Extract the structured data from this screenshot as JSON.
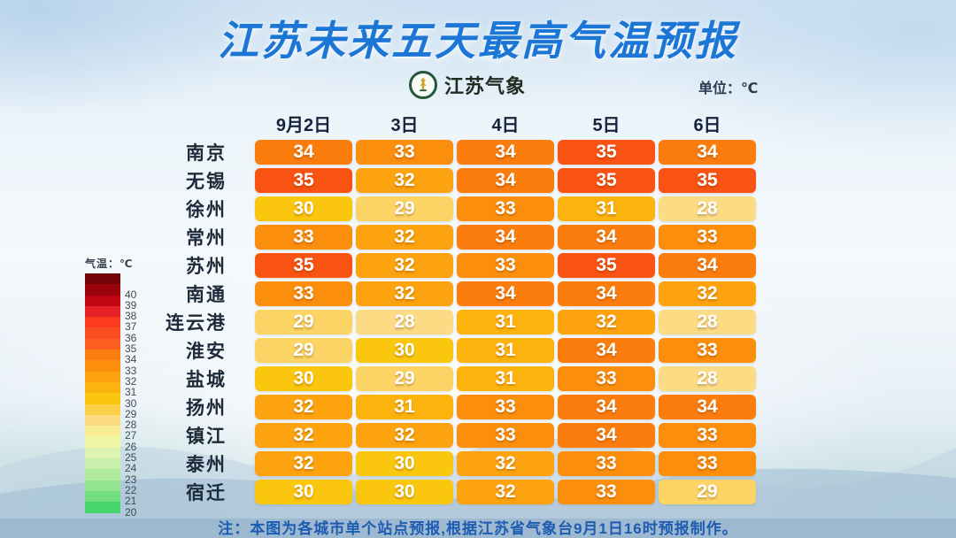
{
  "header": {
    "title": "江苏未来五天最高气温预报",
    "logo_text": "江苏气象",
    "unit_label": "单位：℃"
  },
  "legend": {
    "title": "气温：℃",
    "stops": [
      {
        "label": "",
        "color": "#73040a"
      },
      {
        "label": "40",
        "color": "#9b040c"
      },
      {
        "label": "39",
        "color": "#c00613"
      },
      {
        "label": "38",
        "color": "#e62226"
      },
      {
        "label": "37",
        "color": "#fb3a20"
      },
      {
        "label": "36",
        "color": "#fc4d22"
      },
      {
        "label": "35",
        "color": "#fb5e1f"
      },
      {
        "label": "34",
        "color": "#fb7d0f"
      },
      {
        "label": "33",
        "color": "#fb8e0c"
      },
      {
        "label": "32",
        "color": "#fca30f"
      },
      {
        "label": "31",
        "color": "#fcb30d"
      },
      {
        "label": "30",
        "color": "#fbc70e"
      },
      {
        "label": "29",
        "color": "#fbd14a"
      },
      {
        "label": "28",
        "color": "#fbdc82"
      },
      {
        "label": "27",
        "color": "#f8ec95"
      },
      {
        "label": "26",
        "color": "#eef6a3"
      },
      {
        "label": "25",
        "color": "#dcf3b2"
      },
      {
        "label": "24",
        "color": "#c8efac"
      },
      {
        "label": "23",
        "color": "#afea9e"
      },
      {
        "label": "22",
        "color": "#93e490"
      },
      {
        "label": "21",
        "color": "#74dd80"
      },
      {
        "label": "20",
        "color": "#45d66c"
      }
    ]
  },
  "table": {
    "columns": [
      "9月2日",
      "3日",
      "4日",
      "5日",
      "6日"
    ],
    "rows": [
      {
        "city": "南京",
        "temps": [
          34,
          33,
          34,
          35,
          34
        ]
      },
      {
        "city": "无锡",
        "temps": [
          35,
          32,
          34,
          35,
          35
        ]
      },
      {
        "city": "徐州",
        "temps": [
          30,
          29,
          33,
          31,
          28
        ]
      },
      {
        "city": "常州",
        "temps": [
          33,
          32,
          34,
          34,
          33
        ]
      },
      {
        "city": "苏州",
        "temps": [
          35,
          32,
          33,
          35,
          34
        ]
      },
      {
        "city": "南通",
        "temps": [
          33,
          32,
          34,
          34,
          32
        ]
      },
      {
        "city": "连云港",
        "temps": [
          29,
          28,
          31,
          32,
          28
        ]
      },
      {
        "city": "淮安",
        "temps": [
          29,
          30,
          31,
          34,
          33
        ]
      },
      {
        "city": "盐城",
        "temps": [
          30,
          29,
          31,
          33,
          28
        ]
      },
      {
        "city": "扬州",
        "temps": [
          32,
          31,
          33,
          34,
          34
        ]
      },
      {
        "city": "镇江",
        "temps": [
          32,
          32,
          33,
          34,
          33
        ]
      },
      {
        "city": "泰州",
        "temps": [
          32,
          30,
          32,
          33,
          33
        ]
      },
      {
        "city": "宿迁",
        "temps": [
          30,
          30,
          32,
          33,
          29
        ]
      }
    ]
  },
  "color_map": {
    "28": "#fbdc85",
    "29": "#fbd465",
    "30": "#fbc70e",
    "31": "#fcb30d",
    "32": "#fca30f",
    "33": "#fb8e0c",
    "34": "#fa7d0e",
    "35": "#f95313"
  },
  "footer": {
    "note": "注：本图为各城市单个站点预报,根据江苏省气象台9月1日16时预报制作。"
  },
  "chart_data": {
    "type": "heatmap",
    "title": "江苏未来五天最高气温预报",
    "unit": "℃",
    "x_categories": [
      "9月2日",
      "3日",
      "4日",
      "5日",
      "6日"
    ],
    "y_categories": [
      "南京",
      "无锡",
      "徐州",
      "常州",
      "苏州",
      "南通",
      "连云港",
      "淮安",
      "盐城",
      "扬州",
      "镇江",
      "泰州",
      "宿迁"
    ],
    "values": [
      [
        34,
        33,
        34,
        35,
        34
      ],
      [
        35,
        32,
        34,
        35,
        35
      ],
      [
        30,
        29,
        33,
        31,
        28
      ],
      [
        33,
        32,
        34,
        34,
        33
      ],
      [
        35,
        32,
        33,
        35,
        34
      ],
      [
        33,
        32,
        34,
        34,
        32
      ],
      [
        29,
        28,
        31,
        32,
        28
      ],
      [
        29,
        30,
        31,
        34,
        33
      ],
      [
        30,
        29,
        31,
        33,
        28
      ],
      [
        32,
        31,
        33,
        34,
        34
      ],
      [
        32,
        32,
        33,
        34,
        33
      ],
      [
        32,
        30,
        32,
        33,
        33
      ],
      [
        30,
        30,
        32,
        33,
        29
      ]
    ],
    "legend": {
      "label": "气温：℃",
      "scale_min": 20,
      "scale_max": 40
    },
    "source_note": "注：本图为各城市单个站点预报,根据江苏省气象台9月1日16时预报制作。"
  }
}
